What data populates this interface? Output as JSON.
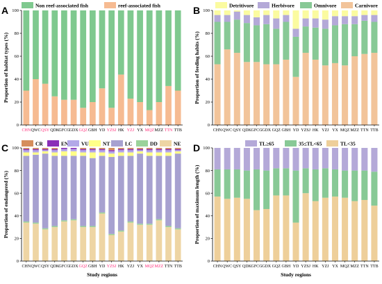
{
  "colors": {
    "non_reef": "#7fc98f",
    "reef": "#f6bb92",
    "detritivore": "#fbfba0",
    "herbivore": "#b4a9d8",
    "omnivore": "#88c996",
    "carnivore": "#f2c49a",
    "cr": "#d58e5c",
    "en": "#8a2fb8",
    "vu": "#b3a8e8",
    "nt": "#ffff88",
    "lc": "#a7a1d0",
    "dd": "#9bd39a",
    "ne": "#eed5a4",
    "tl_ge65": "#b4a9d8",
    "tl_mid": "#88c996",
    "tl_lt35": "#eecf9a",
    "highlight_label": "#ff2d7a"
  },
  "chart_data": [
    {
      "panel": "A",
      "type": "bar",
      "stacked": true,
      "categories": [
        "CHN",
        "QWC",
        "QSY",
        "QDK",
        "GFCG",
        "GDX",
        "GQZ",
        "GBH",
        "YD",
        "YZSJ",
        "HK",
        "YZJ",
        "YX",
        "MQZ",
        "MZZ",
        "TTN",
        "TTB"
      ],
      "highlight_categories": [
        "CHN",
        "QSY",
        "GQZ",
        "YZSJ",
        "YZJ",
        "MQZ",
        "TTN"
      ],
      "ylabel": "Proportion of habitat types (%)",
      "xlabel": "",
      "ylim": [
        0,
        100
      ],
      "yticks": [
        0,
        20,
        40,
        60,
        80,
        100
      ],
      "legend": "top",
      "series": [
        {
          "name": "reef-associated fish",
          "color_key": "reef",
          "values": [
            30,
            40,
            36,
            25,
            22,
            22,
            15,
            20,
            32,
            15,
            44,
            23,
            20,
            13,
            20,
            34,
            30
          ]
        },
        {
          "name": "Non reef-associated fish",
          "color_key": "non_reef",
          "values": [
            70,
            60,
            64,
            75,
            78,
            78,
            85,
            80,
            68,
            85,
            56,
            77,
            80,
            87,
            80,
            66,
            70
          ]
        }
      ]
    },
    {
      "panel": "B",
      "type": "bar",
      "stacked": true,
      "categories": [
        "CHN",
        "QWC",
        "QSY",
        "QDK",
        "GFCG",
        "GDX",
        "GQZ",
        "GBH",
        "YD",
        "YZSJ",
        "HK",
        "YZJ",
        "YX",
        "MQZ",
        "MZZ",
        "TTN",
        "TTB"
      ],
      "ylabel": "Proportion of feeding habits (%)",
      "xlabel": "",
      "ylim": [
        0,
        100
      ],
      "yticks": [
        0,
        20,
        40,
        60,
        80,
        100
      ],
      "legend": "top",
      "series": [
        {
          "name": "Carnivore",
          "color_key": "carnivore",
          "values": [
            53,
            66,
            63,
            55,
            55,
            53,
            53,
            57,
            42,
            63,
            57,
            52,
            54,
            52,
            60,
            62,
            63
          ]
        },
        {
          "name": "Omnivore",
          "color_key": "omnivore",
          "values": [
            37,
            24,
            29,
            34,
            32,
            35,
            31,
            33,
            35,
            23,
            28,
            32,
            33,
            36,
            28,
            29,
            27
          ]
        },
        {
          "name": "Herbivore",
          "color_key": "herbivore",
          "values": [
            6,
            6,
            7,
            7,
            7,
            8,
            9,
            6,
            7,
            7,
            8,
            8,
            8,
            7,
            7,
            5,
            6
          ]
        },
        {
          "name": "Detritivore",
          "color_key": "detritivore",
          "values": [
            4,
            4,
            1,
            4,
            6,
            4,
            7,
            4,
            16,
            7,
            7,
            8,
            5,
            5,
            5,
            4,
            4
          ]
        }
      ]
    },
    {
      "panel": "C",
      "type": "bar",
      "stacked": true,
      "categories": [
        "CHN",
        "QWC",
        "QSY",
        "QDK",
        "GFCG",
        "GDX",
        "GQZ",
        "GBH",
        "YD",
        "YZSJ",
        "HK",
        "YZJ",
        "YX",
        "MQZ",
        "MZZ",
        "TTN",
        "TTB"
      ],
      "highlight_categories": [
        "GQZ",
        "YZSJ",
        "MQZ",
        "MZZ"
      ],
      "ylabel": "Proportion of endangered (%)",
      "xlabel": "Study regions",
      "ylim": [
        0,
        100
      ],
      "yticks": [
        0,
        20,
        40,
        60,
        80,
        100
      ],
      "legend": "top",
      "series": [
        {
          "name": "NE",
          "color_key": "ne",
          "values": [
            34,
            33,
            28,
            30,
            35,
            36,
            30,
            30,
            42,
            23,
            26,
            34,
            32,
            32,
            36,
            30,
            28
          ]
        },
        {
          "name": "DD",
          "color_key": "dd",
          "values": [
            1,
            1,
            1,
            1,
            1,
            1,
            1,
            1,
            1,
            1,
            1,
            1,
            1,
            1,
            1,
            1,
            1
          ]
        },
        {
          "name": "LC",
          "color_key": "lc",
          "values": [
            58,
            60,
            66,
            62,
            57,
            56,
            62,
            60,
            50,
            68,
            66,
            58,
            62,
            60,
            56,
            62,
            66
          ]
        },
        {
          "name": "NT",
          "color_key": "nt",
          "values": [
            3,
            2,
            2,
            3,
            4,
            4,
            3,
            5,
            3,
            3,
            3,
            3,
            2,
            3,
            3,
            3,
            2
          ]
        },
        {
          "name": "VU",
          "color_key": "vu",
          "values": [
            2,
            2,
            1,
            2,
            2,
            2,
            2,
            2,
            2,
            2,
            2,
            2,
            1,
            2,
            2,
            2,
            1
          ]
        },
        {
          "name": "EN",
          "color_key": "en",
          "values": [
            1,
            1,
            1,
            1,
            1,
            1,
            1,
            1,
            1,
            1,
            1,
            1,
            1,
            1,
            1,
            1,
            1
          ]
        },
        {
          "name": "CR",
          "color_key": "cr",
          "values": [
            1,
            1,
            1,
            1,
            0,
            0,
            1,
            1,
            1,
            2,
            1,
            1,
            1,
            1,
            1,
            1,
            1
          ]
        }
      ]
    },
    {
      "panel": "D",
      "type": "bar",
      "stacked": true,
      "categories": [
        "CHN",
        "QWC",
        "QSY",
        "QDK",
        "GFCG",
        "GDX",
        "GQZ",
        "GBH",
        "YD",
        "YZSJ",
        "HK",
        "YZJ",
        "YX",
        "MQZ",
        "MZZ",
        "TTN",
        "TTB"
      ],
      "ylabel": "Proportion of maximum length (%)",
      "xlabel": "Study regions",
      "ylim": [
        0,
        100
      ],
      "yticks": [
        0,
        20,
        40,
        60,
        80,
        100
      ],
      "legend": "top",
      "series": [
        {
          "name": "TL<35",
          "color_key": "tl_lt35",
          "values": [
            57,
            55,
            56,
            55,
            45,
            46,
            58,
            58,
            34,
            60,
            53,
            56,
            57,
            56,
            53,
            54,
            49
          ]
        },
        {
          "name": "35≤TL<65",
          "color_key": "tl_mid",
          "values": [
            24,
            26,
            25,
            25,
            36,
            34,
            24,
            24,
            46,
            22,
            28,
            26,
            24,
            24,
            27,
            26,
            30
          ]
        },
        {
          "name": "TL≥65",
          "color_key": "tl_ge65",
          "values": [
            19,
            19,
            19,
            20,
            19,
            20,
            18,
            18,
            20,
            18,
            19,
            18,
            19,
            20,
            20,
            20,
            21
          ]
        }
      ]
    }
  ]
}
